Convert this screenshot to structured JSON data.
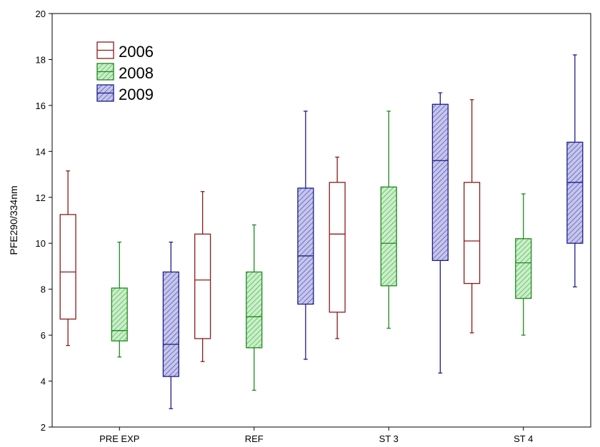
{
  "chart_data": {
    "type": "box",
    "ylabel": "PFE290/334nm",
    "xlabel": "",
    "ylim": [
      2,
      20
    ],
    "yticks": [
      2,
      4,
      6,
      8,
      10,
      12,
      14,
      16,
      18,
      20
    ],
    "categories": [
      "PRE EXP",
      "REF",
      "ST 3",
      "ST 4"
    ],
    "legend_position": "top-left",
    "grid": false,
    "series": [
      {
        "name": "2006",
        "color": "#8b1a1a",
        "fill": "none",
        "boxes": [
          {
            "min": 5.55,
            "q1": 6.7,
            "median": 8.75,
            "q3": 11.25,
            "max": 13.15
          },
          {
            "min": 4.85,
            "q1": 5.85,
            "median": 8.4,
            "q3": 10.4,
            "max": 12.25
          },
          {
            "min": 5.85,
            "q1": 7.0,
            "median": 10.4,
            "q3": 12.65,
            "max": 13.75
          },
          {
            "min": 6.1,
            "q1": 8.25,
            "median": 10.1,
            "q3": 12.65,
            "max": 16.25
          }
        ]
      },
      {
        "name": "2008",
        "color": "#1c8a1c",
        "fill": "#b8e6b8",
        "boxes": [
          {
            "min": 5.05,
            "q1": 5.75,
            "median": 6.2,
            "q3": 8.05,
            "max": 10.05
          },
          {
            "min": 3.6,
            "q1": 5.45,
            "median": 6.8,
            "q3": 8.75,
            "max": 10.8
          },
          {
            "min": 6.3,
            "q1": 8.15,
            "median": 10.0,
            "q3": 12.45,
            "max": 15.75
          },
          {
            "min": 6.0,
            "q1": 7.6,
            "median": 9.15,
            "q3": 10.2,
            "max": 12.15
          }
        ]
      },
      {
        "name": "2009",
        "color": "#1c1c8a",
        "fill": "#b4b4e0",
        "boxes": [
          {
            "min": 2.8,
            "q1": 4.2,
            "median": 5.6,
            "q3": 8.75,
            "max": 10.05
          },
          {
            "min": 4.95,
            "q1": 7.35,
            "median": 9.45,
            "q3": 12.4,
            "max": 15.75
          },
          {
            "min": 4.35,
            "q1": 9.25,
            "median": 13.6,
            "q3": 16.05,
            "max": 16.55
          },
          {
            "min": 8.1,
            "q1": 10.0,
            "median": 12.65,
            "q3": 14.4,
            "max": 18.2
          }
        ]
      }
    ]
  }
}
